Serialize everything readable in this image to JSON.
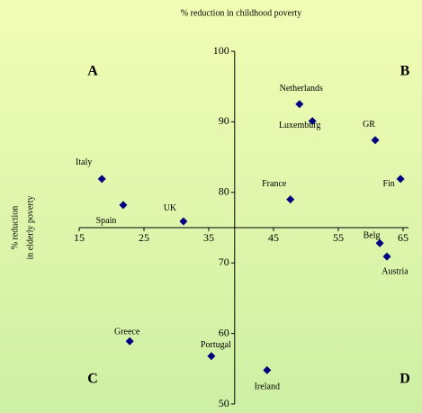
{
  "chart_data": {
    "type": "scatter",
    "title": "% reduction in childhood poverty",
    "y_label": [
      "% reduction",
      "in elderly poverty"
    ],
    "quadrants": [
      "A",
      "B",
      "C",
      "D"
    ],
    "labels": [
      "Italy",
      "Spain",
      "UK",
      "France",
      "Netherlands",
      "Luxemburg",
      "GR",
      "Fin",
      "Belg",
      "Austria",
      "Greece",
      "Portugal",
      "Ireland"
    ],
    "x": [
      18.5,
      21.8,
      31.1,
      47.6,
      49.0,
      51.0,
      60.7,
      64.6,
      61.4,
      62.5,
      22.8,
      35.4,
      44.0
    ],
    "values": [
      81.9,
      78.2,
      75.9,
      79.0,
      92.5,
      90.1,
      87.4,
      81.9,
      72.8,
      70.9,
      58.9,
      56.8,
      54.8
    ],
    "color": "#000080",
    "xlim": [
      15,
      65
    ],
    "xticks": [
      15,
      25,
      35,
      45,
      55,
      65
    ],
    "ylim": [
      50,
      100
    ],
    "yticks": [
      50,
      60,
      70,
      80,
      90,
      100
    ],
    "x_axis_crosses_y_at": 75,
    "y_axis_crosses_x_at": 39
  }
}
